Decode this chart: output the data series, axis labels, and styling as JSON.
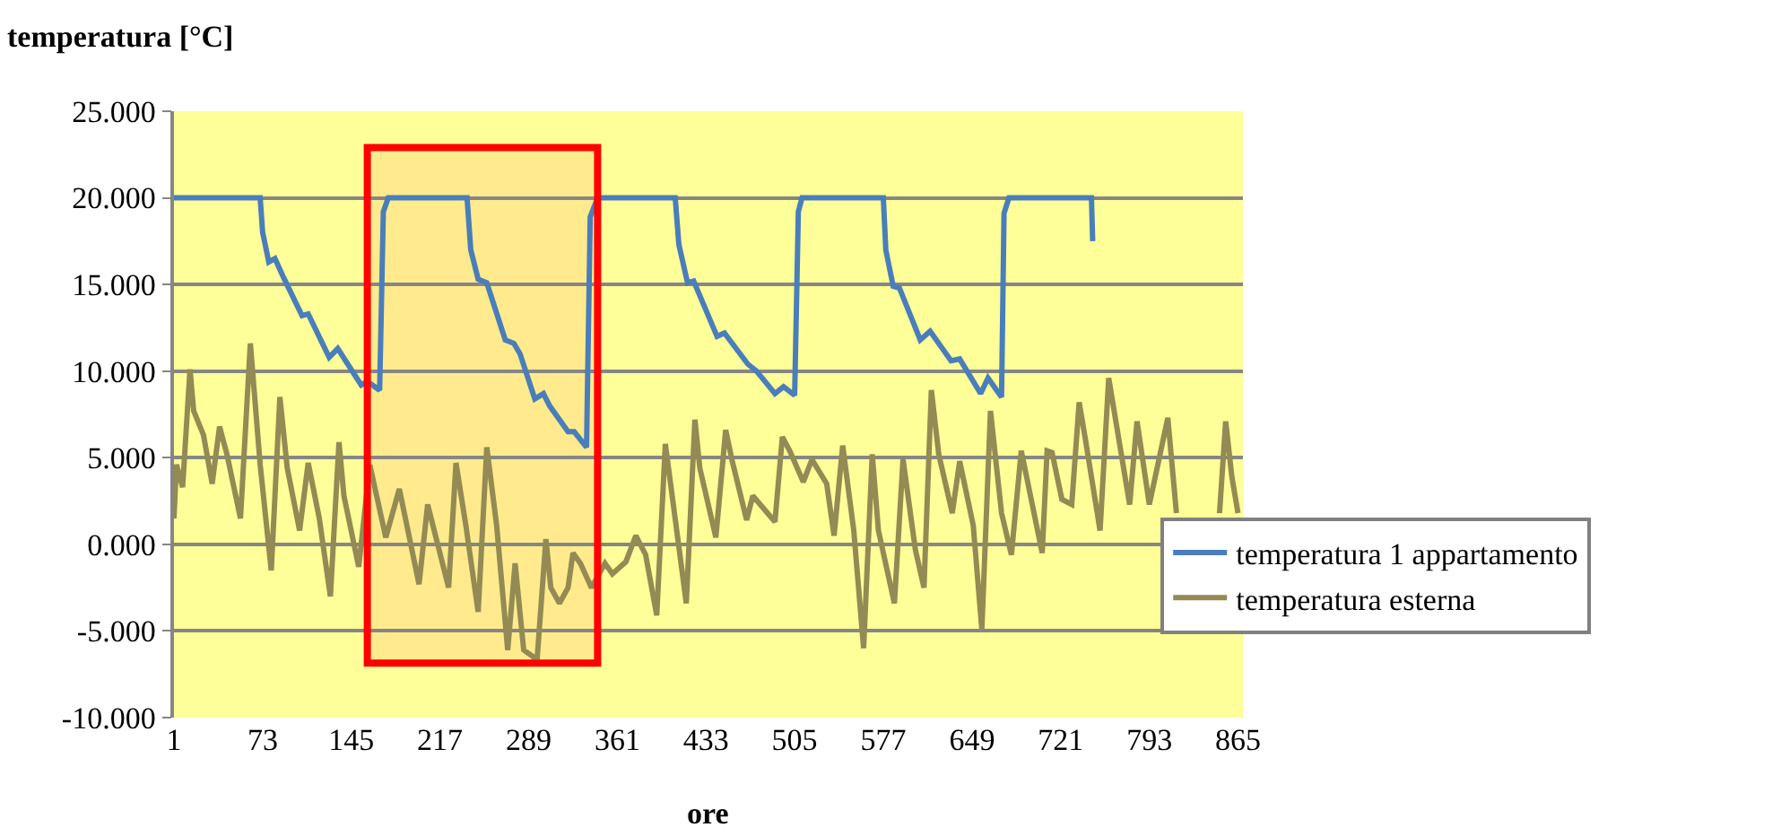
{
  "chart_data": {
    "type": "line",
    "ylabel": "temperatura [°C]",
    "xlabel": "ore",
    "xlim": [
      1,
      869
    ],
    "xticks": [
      1,
      73,
      145,
      217,
      289,
      361,
      433,
      505,
      577,
      649,
      721,
      793,
      865
    ],
    "ylim": [
      -10,
      25
    ],
    "yticks": [
      {
        "value": 25,
        "label": "25.000"
      },
      {
        "value": 20,
        "label": "20.000"
      },
      {
        "value": 15,
        "label": "15.000"
      },
      {
        "value": 10,
        "label": "10.000"
      },
      {
        "value": 5,
        "label": "5.000"
      },
      {
        "value": 0,
        "label": "0.000"
      },
      {
        "value": -5,
        "label": "-5.000"
      },
      {
        "value": -10,
        "label": "-10.000"
      }
    ],
    "grid": "y",
    "legend": "bottom right",
    "line_style": "solid",
    "marker": "none",
    "bands": [
      {
        "axis": "x",
        "from": 158,
        "to": 345,
        "color": "#ff0000"
      }
    ],
    "series": [
      {
        "name": "temperatura 1 appartamento",
        "color": "#4a7ebb",
        "x": [
          1,
          71,
          73,
          78,
          83,
          90,
          105,
          110,
          127,
          134,
          153,
          158,
          168,
          171,
          175,
          239,
          242,
          248,
          255,
          270,
          277,
          282,
          294,
          301,
          306,
          321,
          326,
          336,
          339,
          345,
          408,
          411,
          418,
          423,
          442,
          448,
          467,
          474,
          489,
          496,
          505,
          508,
          511,
          577,
          579,
          585,
          590,
          607,
          615,
          632,
          639,
          656,
          662,
          673,
          675,
          679,
          746,
          747
        ],
        "values": [
          20,
          20,
          18.0,
          16.3,
          16.5,
          15.4,
          13.2,
          13.3,
          10.8,
          11.3,
          9.2,
          9.4,
          8.9,
          19.2,
          20,
          20,
          17.0,
          15.3,
          15.1,
          11.8,
          11.6,
          11.0,
          8.4,
          8.7,
          8.0,
          6.5,
          6.5,
          5.6,
          18.9,
          20,
          20,
          17.3,
          15.1,
          15.2,
          12.0,
          12.2,
          10.4,
          10.0,
          8.7,
          9.1,
          8.6,
          19.2,
          20,
          20,
          17.0,
          14.9,
          14.8,
          11.8,
          12.3,
          10.6,
          10.7,
          8.7,
          9.6,
          8.5,
          19.1,
          20,
          20,
          17.5
        ]
      },
      {
        "name": "temperatura esterna",
        "color": "#948a54",
        "x": [
          1,
          3,
          8,
          14,
          17,
          25,
          32,
          38,
          44,
          55,
          63,
          71,
          80,
          87,
          93,
          103,
          110,
          119,
          128,
          135,
          139,
          151,
          160,
          173,
          184,
          200,
          207,
          224,
          230,
          238,
          248,
          255,
          263,
          272,
          278,
          285,
          293,
          296,
          303,
          307,
          314,
          321,
          325,
          331,
          340,
          351,
          357,
          368,
          376,
          384,
          393,
          400,
          417,
          424,
          428,
          441,
          449,
          454,
          466,
          471,
          489,
          495,
          501,
          512,
          519,
          531,
          537,
          544,
          553,
          561,
          568,
          573,
          586,
          593,
          603,
          610,
          616,
          622,
          633,
          639,
          650,
          657,
          664,
          673,
          681,
          689,
          706,
          710,
          714,
          722,
          730,
          736,
          741,
          753,
          760,
          777,
          783,
          793,
          808,
          815,
          838,
          850,
          855,
          860,
          865
        ],
        "values": [
          1.5,
          4.6,
          3.3,
          10.1,
          7.7,
          6.3,
          3.5,
          6.8,
          5.2,
          1.5,
          11.6,
          4.6,
          -1.5,
          8.5,
          4.4,
          0.8,
          4.7,
          1.5,
          -3.0,
          5.9,
          2.8,
          -1.3,
          4.6,
          0.4,
          3.2,
          -2.3,
          2.3,
          -2.5,
          4.7,
          1.1,
          -3.9,
          5.6,
          1.1,
          -6.1,
          -1.1,
          -6.1,
          -6.5,
          -6.5,
          0.3,
          -2.5,
          -3.4,
          -2.5,
          -0.5,
          -1.1,
          -2.5,
          -1.1,
          -1.7,
          -1.0,
          0.5,
          -0.6,
          -4.1,
          5.8,
          -3.4,
          7.2,
          4.4,
          0.4,
          6.6,
          4.9,
          1.4,
          2.8,
          1.3,
          6.2,
          5.4,
          3.6,
          4.9,
          3.5,
          0.5,
          5.7,
          0.8,
          -6.0,
          5.2,
          0.8,
          -3.4,
          4.9,
          -0.3,
          -2.5,
          8.9,
          5.2,
          1.8,
          4.8,
          1.1,
          -4.9,
          7.7,
          1.8,
          -0.6,
          5.4,
          -0.5,
          5.4,
          5.3,
          2.6,
          2.3,
          8.2,
          6.1,
          0.8,
          9.6,
          2.3,
          7.1,
          2.3,
          7.3,
          1.8,
          null,
          1.8,
          7.1,
          3.9,
          1.8
        ]
      }
    ]
  }
}
